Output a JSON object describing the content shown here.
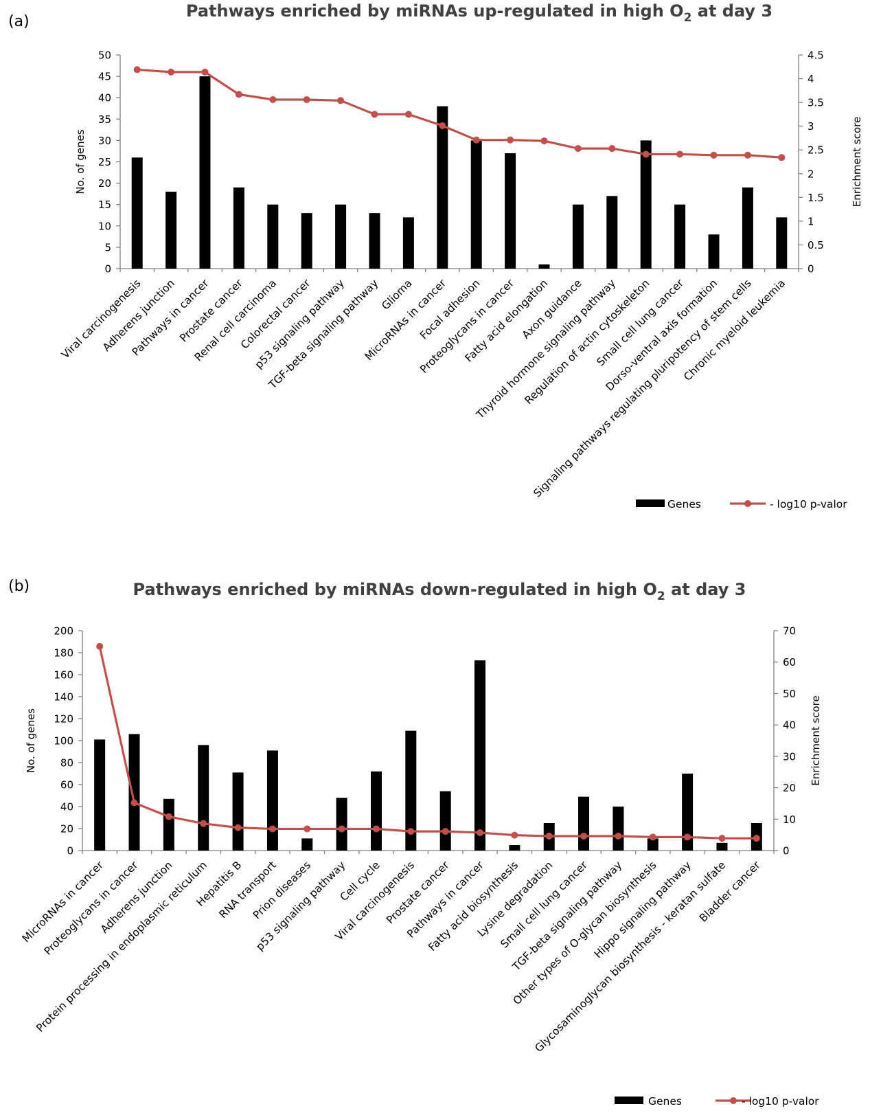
{
  "chart_data": [
    {
      "type": "bar",
      "panel_label": "(a)",
      "title": {
        "text": "Pathways enriched by miRNAs up-regulated in high O",
        "sub": "2",
        "after": " at day 3"
      },
      "ylabel": "No. of genes",
      "y2label": "Enrichment score",
      "ylim": [
        0,
        50
      ],
      "yticks": [
        0,
        5,
        10,
        15,
        20,
        25,
        30,
        35,
        40,
        45,
        50
      ],
      "y2lim": [
        0,
        4.5
      ],
      "y2ticks": [
        0,
        0.5,
        1,
        1.5,
        2,
        2.5,
        3,
        3.5,
        4,
        4.5
      ],
      "categories": [
        "Viral carcinogenesis",
        "Adherens junction",
        "Pathways in cancer",
        "Prostate cancer",
        "Renal cell carcinoma",
        "Colorectal cancer",
        "p53 signaling pathway",
        "TGF-beta signaling pathway",
        "Glioma",
        "MicroRNAs in cancer",
        "Focal adhesion",
        "Proteoglycans in cancer",
        "Fatty acid elongation",
        "Axon guidance",
        "Thyroid hormone signaling pathway",
        "Regulation of actin cytoskeleton",
        "Small cell lung cancer",
        "Dorso-ventral axis formation",
        "Signaling pathways regulating pluripotency of stem cells",
        "Chronic myeloid leukemia"
      ],
      "series": [
        {
          "name": "Genes",
          "kind": "bar",
          "axis": "left",
          "color": "#000000",
          "values": [
            26,
            18,
            45,
            19,
            15,
            13,
            15,
            13,
            12,
            38,
            30,
            27,
            1,
            15,
            17,
            30,
            15,
            8,
            19,
            12
          ]
        },
        {
          "name": "- log10 p-valor",
          "kind": "line",
          "axis": "right",
          "color": "#C0504D",
          "values": [
            4.19,
            4.14,
            4.14,
            3.67,
            3.56,
            3.56,
            3.54,
            3.25,
            3.25,
            3.01,
            2.71,
            2.71,
            2.69,
            2.53,
            2.53,
            2.41,
            2.41,
            2.39,
            2.39,
            2.34
          ]
        }
      ],
      "legend": "bottom-right"
    },
    {
      "type": "bar",
      "panel_label": "(b)",
      "title": {
        "text": "Pathways enriched by miRNAs down-regulated in high O",
        "sub": "2",
        "after": " at day 3"
      },
      "ylabel": "No. of genes",
      "y2label": "Enrichment score",
      "ylim": [
        0,
        200
      ],
      "yticks": [
        0,
        20,
        40,
        60,
        80,
        100,
        120,
        140,
        160,
        180,
        200
      ],
      "y2lim": [
        0,
        70
      ],
      "y2ticks": [
        0,
        10,
        20,
        30,
        40,
        50,
        60,
        70
      ],
      "categories": [
        "MicroRNAs in cancer",
        "Proteoglycans in cancer",
        "Adherens junction",
        "Protein processing in endoplasmic reticulum",
        "Hepatitis B",
        "RNA transport",
        "Prion diseases",
        "p53 signaling pathway",
        "Cell cycle",
        "Viral carcinogenesis",
        "Prostate cancer",
        "Pathways in cancer",
        "Fatty acid biosynthesis",
        "Lysine degradation",
        "Small cell lung cancer",
        "TGF-beta signaling pathway",
        "Other types of O-glycan biosynthesis",
        "Hippo signaling pathway",
        "Glycosaminoglycan biosynthesis - keratan sulfate",
        "Bladder cancer"
      ],
      "series": [
        {
          "name": "Genes",
          "kind": "bar",
          "axis": "left",
          "color": "#000000",
          "values": [
            101,
            106,
            47,
            96,
            71,
            91,
            11,
            48,
            72,
            109,
            54,
            173,
            5,
            25,
            49,
            40,
            11,
            70,
            7,
            25
          ]
        },
        {
          "name": "- log10 p-valor",
          "kind": "line",
          "axis": "right",
          "color": "#C0504D",
          "values": [
            65,
            15.2,
            10.8,
            8.6,
            7.3,
            6.9,
            6.9,
            6.9,
            6.9,
            6.1,
            6.1,
            5.7,
            4.9,
            4.6,
            4.6,
            4.6,
            4.3,
            4.3,
            3.9,
            3.9
          ]
        }
      ],
      "legend": "bottom-right"
    }
  ]
}
